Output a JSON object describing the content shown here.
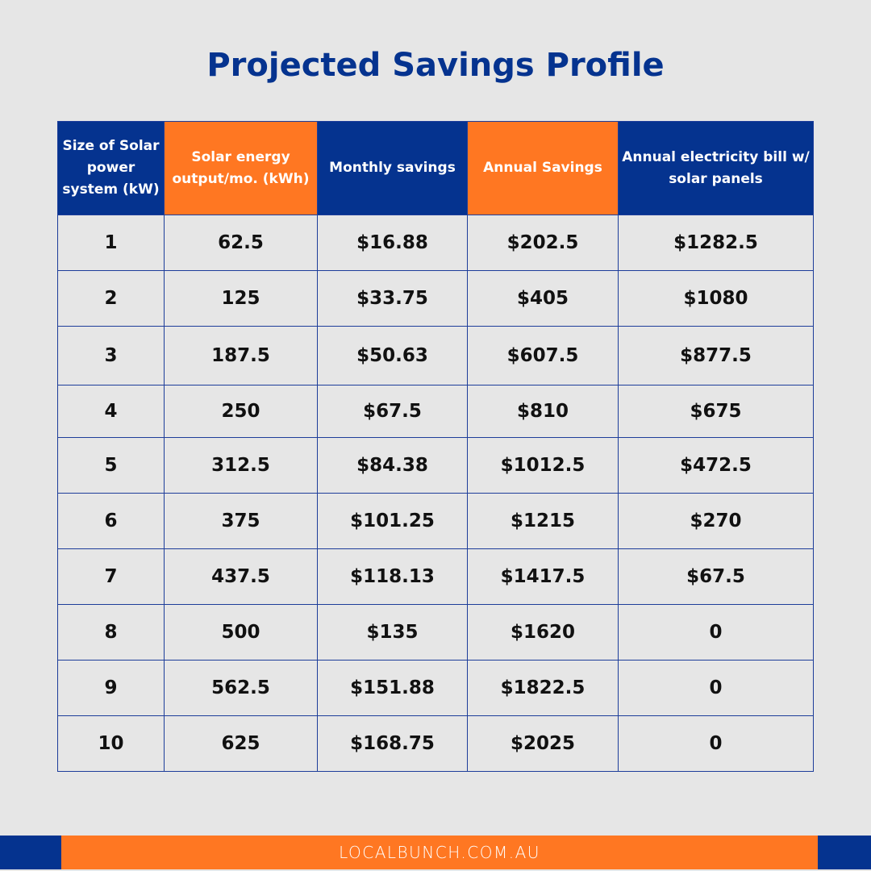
{
  "title": "Projected Savings Profile",
  "colors": {
    "blue": "#05338f",
    "orange": "#ff7722",
    "background": "#e6e6e6"
  },
  "table": {
    "headers": [
      {
        "label": "Size of Solar power system (kW)",
        "color": "blue"
      },
      {
        "label": "Solar energy output/mo. (kWh)",
        "color": "orange"
      },
      {
        "label": "Monthly savings",
        "color": "blue"
      },
      {
        "label": "Annual Savings",
        "color": "orange"
      },
      {
        "label": "Annual electricity bill w/ solar panels",
        "color": "blue"
      }
    ],
    "rows": [
      [
        "1",
        "62.5",
        "$16.88",
        "$202.5",
        "$1282.5"
      ],
      [
        "2",
        "125",
        "$33.75",
        "$405",
        "$1080"
      ],
      [
        "3",
        "187.5",
        "$50.63",
        "$607.5",
        "$877.5"
      ],
      [
        "4",
        "250",
        "$67.5",
        "$810",
        "$675"
      ],
      [
        "5",
        "312.5",
        "$84.38",
        "$1012.5",
        "$472.5"
      ],
      [
        "6",
        "375",
        "$101.25",
        "$1215",
        "$270"
      ],
      [
        "7",
        "437.5",
        "$118.13",
        "$1417.5",
        "$67.5"
      ],
      [
        "8",
        "500",
        "$135",
        "$1620",
        "0"
      ],
      [
        "9",
        "562.5",
        "$151.88",
        "$1822.5",
        "0"
      ],
      [
        "10",
        "625",
        "$168.75",
        "$2025",
        "0"
      ]
    ]
  },
  "footer": {
    "website": "LOCALBUNCH.COM.AU"
  }
}
